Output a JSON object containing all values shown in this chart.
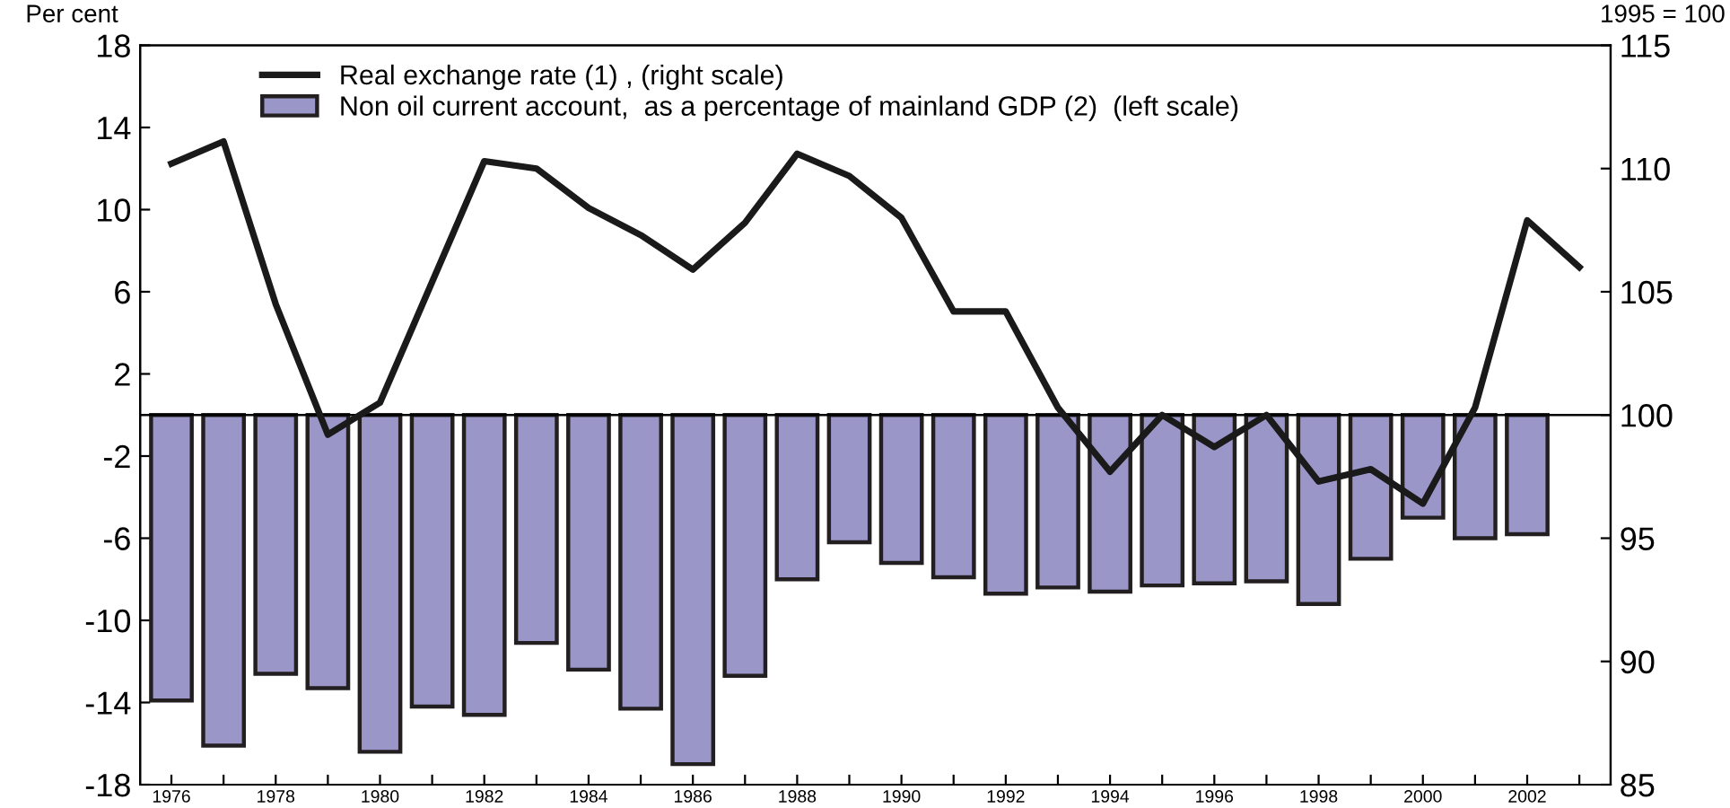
{
  "chart_data": {
    "type": "bar",
    "ylabel": "Per cent",
    "y2label": "1995 = 100",
    "categories": [
      "1976",
      null,
      "1978",
      null,
      "1980",
      null,
      "1982",
      null,
      "1984",
      null,
      "1986",
      null,
      "1988",
      null,
      "1990",
      null,
      "1992",
      null,
      "1994",
      null,
      "1996",
      null,
      "1998",
      null,
      "2000",
      null,
      "2002",
      null
    ],
    "series": [
      {
        "name": "Real exchange rate (1) , (right scale)",
        "type": "line",
        "axis": "y2",
        "color": "#1a1a1a",
        "values": [
          110.2,
          111.1,
          104.5,
          99.2,
          100.5,
          105.4,
          110.3,
          110.0,
          108.4,
          107.3,
          105.9,
          107.8,
          110.6,
          109.7,
          108.0,
          104.2,
          104.2,
          100.3,
          97.7,
          100.0,
          98.7,
          100.0,
          97.3,
          97.8,
          96.4,
          100.3,
          107.9,
          106.0
        ]
      },
      {
        "name": "Non oil current account,  as a percentage of mainland GDP (2)  (left scale)",
        "color": "#9a96c8",
        "values": [
          -13.9,
          -16.1,
          -12.6,
          -13.3,
          -16.4,
          -14.2,
          -14.6,
          -11.1,
          -12.4,
          -14.3,
          -17.0,
          -12.7,
          -8.0,
          -6.2,
          -7.2,
          -7.9,
          -8.7,
          -8.4,
          -8.6,
          -8.3,
          -8.2,
          -8.1,
          -9.2,
          -7.0,
          -5.0,
          -6.0,
          -5.8,
          null
        ]
      }
    ],
    "ylim": [
      -18,
      18
    ],
    "yticks": [
      -18,
      -14,
      -10,
      -6,
      -2,
      2,
      6,
      10,
      14,
      18
    ],
    "y2lim": [
      85,
      115
    ],
    "y2ticks": [
      85,
      90,
      95,
      100,
      105,
      110,
      115
    ],
    "ref_lines": [
      {
        "axis": "y",
        "value": 0
      }
    ],
    "grid": false,
    "legend": "top left"
  }
}
